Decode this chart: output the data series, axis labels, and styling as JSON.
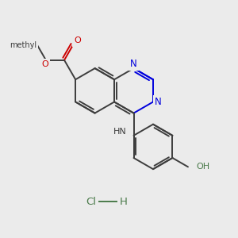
{
  "bg": "#ebebeb",
  "bond_color": "#3d3d3d",
  "N_color": "#0000dd",
  "O_color": "#cc0000",
  "green_color": "#4a7a4a",
  "lw": 1.4,
  "figsize": [
    3.0,
    3.0
  ],
  "dpi": 100,
  "xlim": [
    0,
    10
  ],
  "ylim": [
    0,
    10
  ],
  "bl": 0.95
}
